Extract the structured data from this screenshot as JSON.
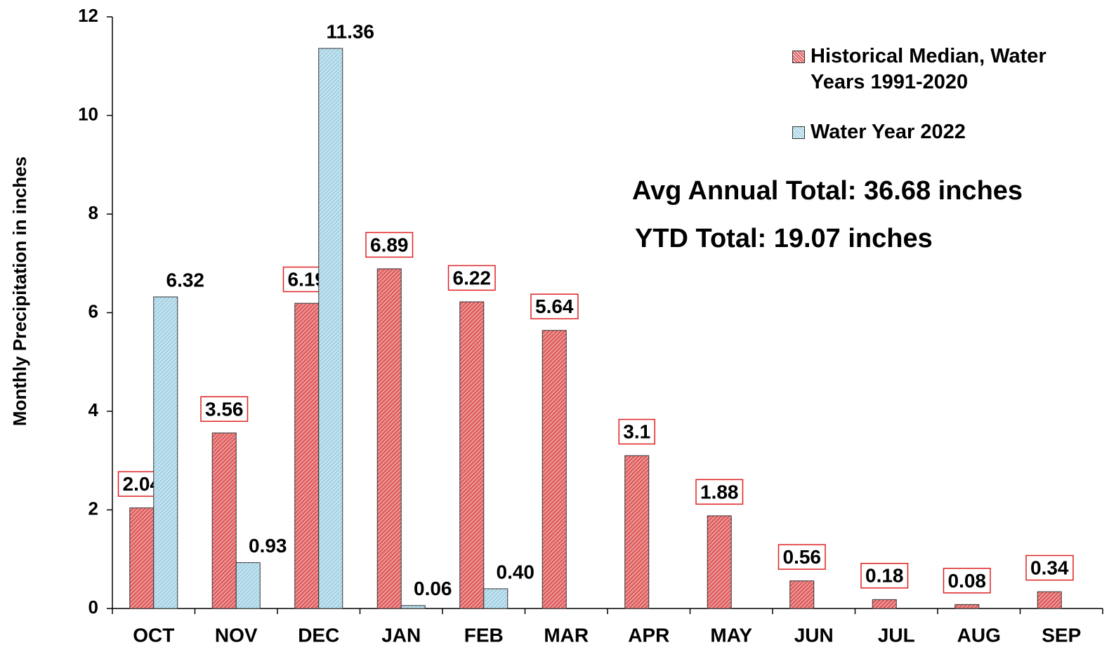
{
  "chart_data": {
    "type": "bar",
    "y_label": "Monthly Precipitation in inches",
    "categories": [
      "OCT",
      "NOV",
      "DEC",
      "JAN",
      "FEB",
      "MAR",
      "APR",
      "MAY",
      "JUN",
      "JUL",
      "AUG",
      "SEP"
    ],
    "series": [
      {
        "name": "Historical Median, Water Years 1991-2020",
        "color": "#e06060",
        "values": [
          2.04,
          3.56,
          6.19,
          6.89,
          6.22,
          5.64,
          3.1,
          1.88,
          0.56,
          0.18,
          0.08,
          0.34
        ]
      },
      {
        "name": "Water Year 2022",
        "color": "#a8d4e6",
        "values": [
          6.32,
          0.93,
          11.36,
          0.06,
          0.4,
          null,
          null,
          null,
          null,
          null,
          null,
          null
        ],
        "value_labels": [
          "6.32",
          "0.93",
          "11.36",
          "0.06",
          "0.40",
          null,
          null,
          null,
          null,
          null,
          null,
          null
        ]
      }
    ],
    "annotations": [
      "Avg Annual Total: 36.68 inches",
      "YTD Total: 19.07 inches"
    ],
    "ylim": [
      0,
      12
    ],
    "yticks": [
      0,
      2,
      4,
      6,
      8,
      10,
      12
    ],
    "legend": "upper right"
  }
}
